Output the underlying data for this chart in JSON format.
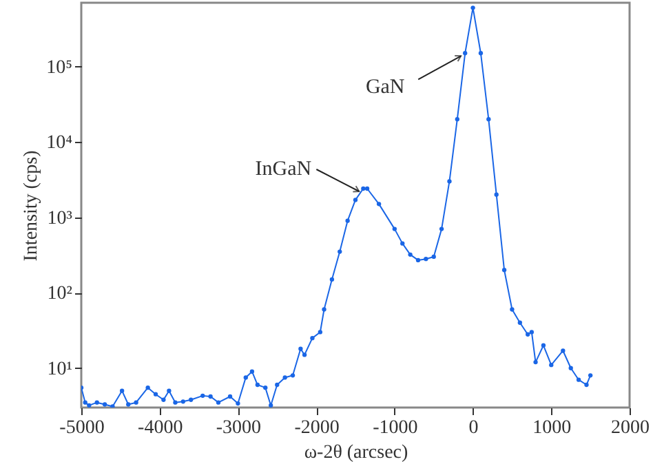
{
  "chart_data": {
    "type": "line",
    "xlabel": "ω-2θ (arcsec)",
    "ylabel": "Intensity (cps)",
    "log": "y",
    "marker": "circle",
    "line_style": "solid",
    "x": [
      -5000,
      -4950,
      -4900,
      -4800,
      -4700,
      -4600,
      -4480,
      -4400,
      -4300,
      -4150,
      -4050,
      -3950,
      -3880,
      -3800,
      -3700,
      -3600,
      -3450,
      -3350,
      -3250,
      -3100,
      -3000,
      -2900,
      -2820,
      -2750,
      -2650,
      -2580,
      -2500,
      -2400,
      -2300,
      -2200,
      -2150,
      -2050,
      -1950,
      -1900,
      -1800,
      -1700,
      -1600,
      -1500,
      -1400,
      -1350,
      -1200,
      -1000,
      -900,
      -800,
      -700,
      -600,
      -500,
      -400,
      -300,
      -200,
      -100,
      0,
      100,
      200,
      300,
      400,
      500,
      600,
      700,
      750,
      800,
      900,
      1000,
      1150,
      1250,
      1350,
      1450,
      1500
    ],
    "series": [
      {
        "color": "#1a66e6",
        "values": [
          5.5,
          3.5,
          3.2,
          3.5,
          3.3,
          3.1,
          5,
          3.3,
          3.5,
          5.5,
          4.5,
          3.8,
          5,
          3.5,
          3.6,
          3.8,
          4.3,
          4.2,
          3.5,
          4.2,
          3.4,
          7.5,
          9,
          6,
          5.5,
          3.2,
          6,
          7.5,
          8,
          18,
          15,
          25,
          30,
          60,
          150,
          350,
          900,
          1700,
          2400,
          2400,
          1500,
          700,
          450,
          320,
          270,
          280,
          300,
          700,
          3000,
          20000,
          150000,
          600000,
          150000,
          20000,
          2000,
          200,
          60,
          40,
          28,
          30,
          12,
          20,
          11,
          17,
          10,
          7,
          6,
          8
        ]
      }
    ],
    "xlim": [
      -5000,
      2000
    ],
    "xticks": [
      -5000,
      -4000,
      -3000,
      -2000,
      -1000,
      0,
      1000,
      2000
    ],
    "ylim": [
      3,
      700000
    ],
    "yticks": [
      {
        "value": 10,
        "label": "10¹"
      },
      {
        "value": 100,
        "label": "10²"
      },
      {
        "value": 1000,
        "label": "10³"
      },
      {
        "value": 10000,
        "label": "10⁴"
      },
      {
        "value": 100000,
        "label": "10⁵"
      }
    ],
    "annotations": [
      {
        "text": "GaN",
        "x": -100,
        "y": 150000
      },
      {
        "text": "InGaN",
        "x": -1400,
        "y": 2400
      }
    ]
  }
}
